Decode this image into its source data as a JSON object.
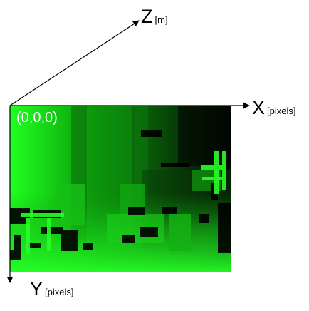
{
  "axes": {
    "x": {
      "letter": "X",
      "unit": "[pixels]"
    },
    "y": {
      "letter": "Y",
      "unit": "[pixels]"
    },
    "z": {
      "letter": "Z",
      "unit": "[m]"
    }
  },
  "origin_label": "(0,0,0)",
  "colors": {
    "depth_bright": "#22ff22",
    "depth_mid": "#0fa80f",
    "depth_dark": "#041a04",
    "axis": "#000000"
  }
}
